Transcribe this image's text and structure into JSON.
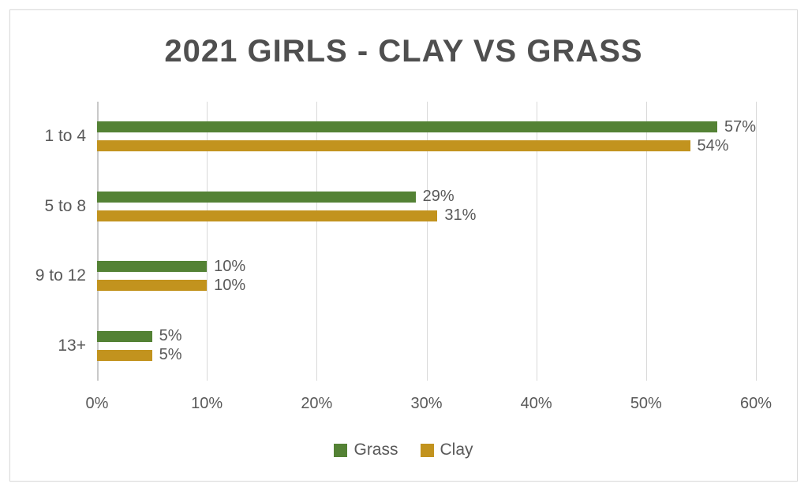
{
  "chart_data": {
    "type": "bar",
    "orientation": "horizontal",
    "title": "2021 GIRLS - CLAY VS GRASS",
    "categories": [
      "1 to 4",
      "5 to 8",
      "9 to 12",
      "13+"
    ],
    "series": [
      {
        "name": "Grass",
        "color": "#548235",
        "values": [
          57,
          29,
          10,
          5
        ],
        "labels": [
          "57%",
          "29%",
          "10%",
          "5%"
        ]
      },
      {
        "name": "Clay",
        "color": "#C2931E",
        "values": [
          54,
          31,
          10,
          5
        ],
        "labels": [
          "54%",
          "31%",
          "10%",
          "5%"
        ]
      }
    ],
    "xlim": [
      0,
      60
    ],
    "x_ticks": [
      "0%",
      "10%",
      "20%",
      "30%",
      "40%",
      "50%",
      "60%"
    ],
    "grid": true,
    "legend_position": "bottom",
    "colors": {
      "title_text": "#4F4F4F",
      "axis_text": "#595959",
      "gridline": "#D9D9D9",
      "axis_line": "#C9C9C9",
      "frame_border": "#D9D9D9",
      "background": "#FFFFFF"
    }
  }
}
